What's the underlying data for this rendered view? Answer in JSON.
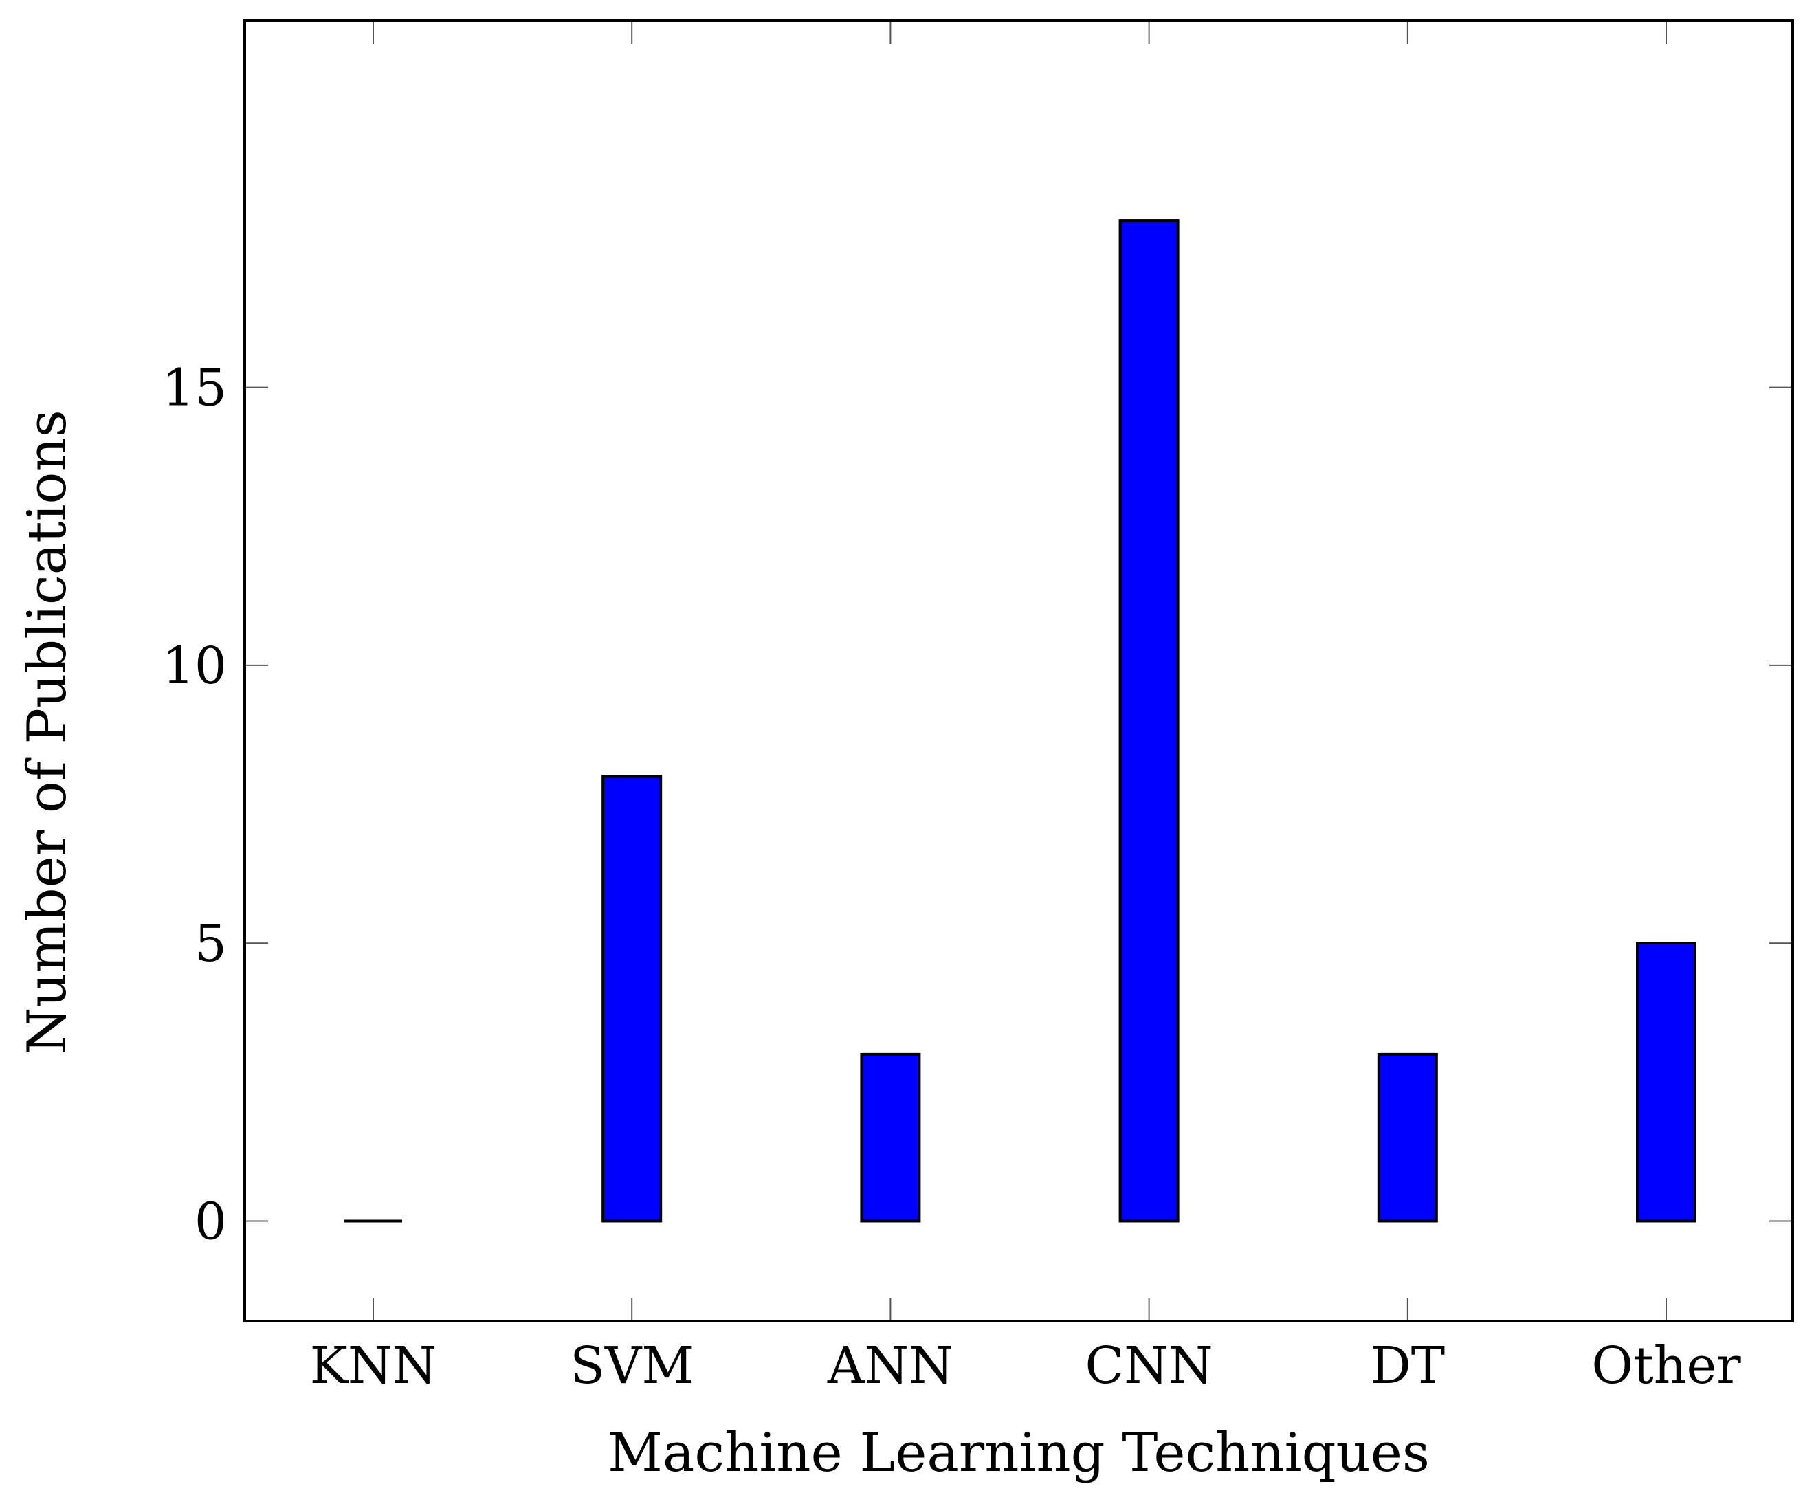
{
  "chart_data": {
    "type": "bar",
    "categories": [
      "KNN",
      "SVM",
      "ANN",
      "CNN",
      "DT",
      "Other"
    ],
    "values": [
      0,
      8,
      3,
      18,
      3,
      5
    ],
    "title": "",
    "xlabel": "Machine Learning Techniques",
    "ylabel": "Number of Publications",
    "ylim": [
      -1.8,
      21.6
    ],
    "yticks": [
      0,
      5,
      10,
      15
    ],
    "grid": false,
    "bar_color": "#0000ff"
  }
}
